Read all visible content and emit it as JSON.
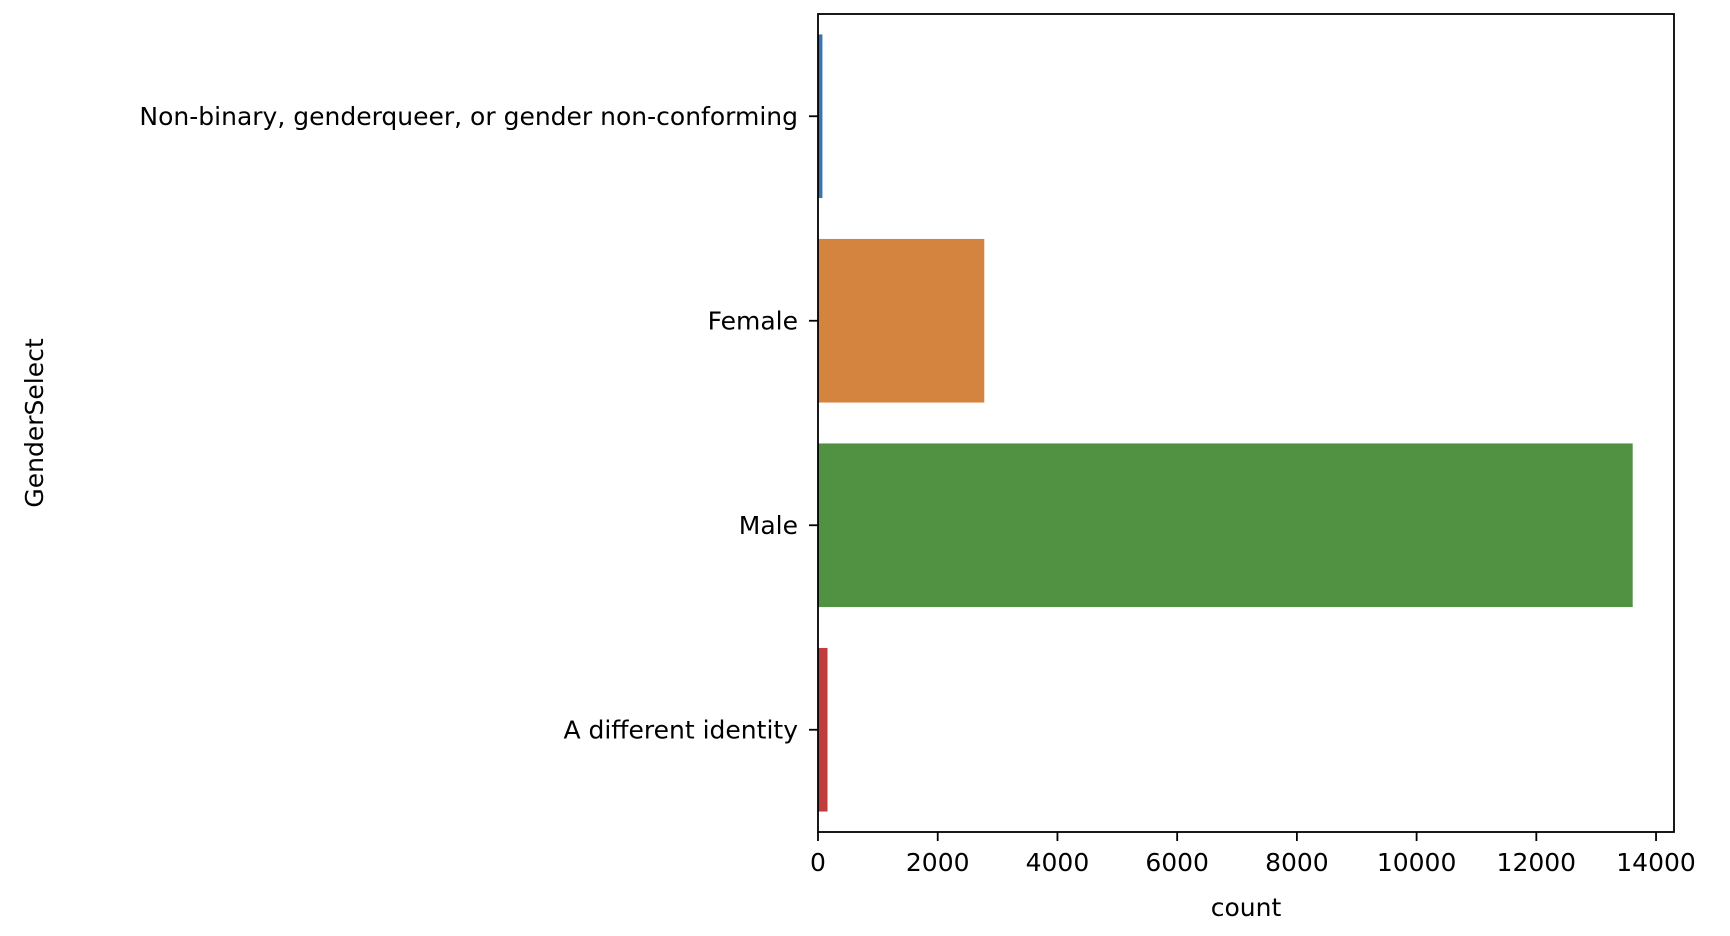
{
  "chart_data": {
    "type": "bar",
    "orientation": "horizontal",
    "categories": [
      "Non-binary, genderqueer, or gender non-conforming",
      "Female",
      "Male",
      "A different identity"
    ],
    "values": [
      74,
      2778,
      13610,
      159
    ],
    "colors": [
      "#3a75b0",
      "#d58440",
      "#519142",
      "#c03d3e"
    ],
    "xlabel": "count",
    "ylabel": "GenderSelect",
    "xlim": [
      0,
      14300
    ],
    "xticks": [
      0,
      2000,
      4000,
      6000,
      8000,
      10000,
      12000,
      14000
    ],
    "xtick_labels": [
      "0",
      "2000",
      "4000",
      "6000",
      "8000",
      "10000",
      "12000",
      "14000"
    ],
    "grid": false,
    "legend": "none"
  }
}
